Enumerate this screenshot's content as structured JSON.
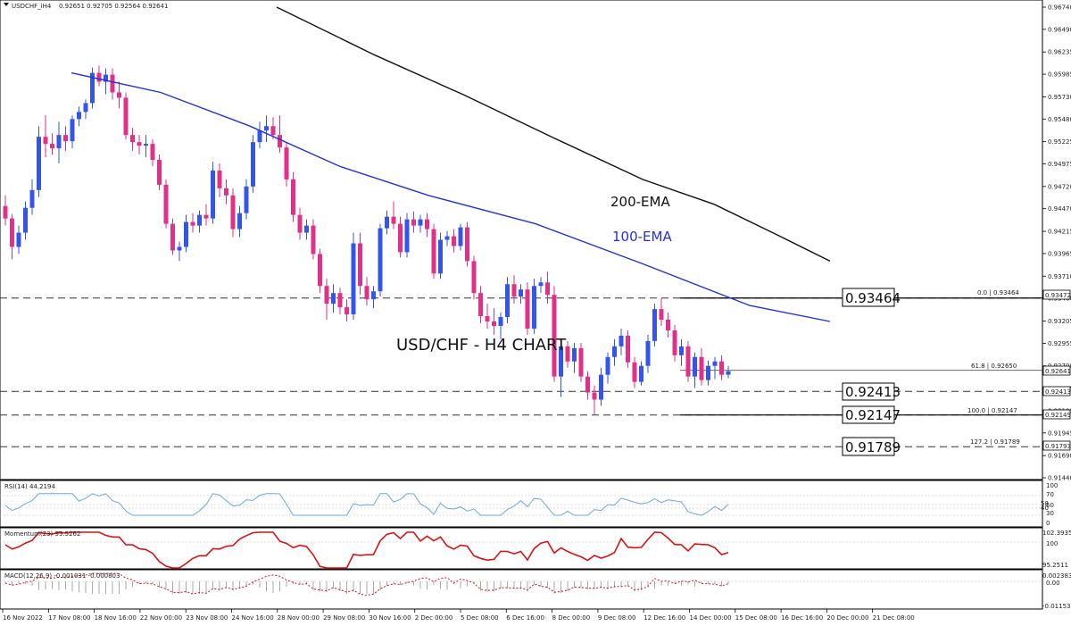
{
  "header": {
    "symbol_label": "USDCHF_iH4",
    "ohlc": "0.92651 0.92705 0.92564 0.92641"
  },
  "chart_data": {
    "type": "candlestick",
    "title": "USD/CHF - H4 CHART",
    "price_range": [
      0.9144,
      0.9674
    ],
    "y_ticks": [
      "0.96740",
      "0.96490",
      "0.96235",
      "0.95985",
      "0.95730",
      "0.95480",
      "0.95225",
      "0.94975",
      "0.94720",
      "0.94470",
      "0.94215",
      "0.93965",
      "0.93710",
      "0.93460",
      "0.93205",
      "0.92955",
      "0.92700",
      "0.92445",
      "0.92195",
      "0.91945",
      "0.91690",
      "0.91440"
    ],
    "x_ticks": [
      "16 Nov 2022",
      "17 Nov 08:00",
      "18 Nov 16:00",
      "22 Nov 00:00",
      "23 Nov 08:00",
      "24 Nov 16:00",
      "28 Nov 00:00",
      "29 Nov 08:00",
      "30 Nov 16:00",
      "2 Dec 00:00",
      "5 Dec 08:00",
      "6 Dec 16:00",
      "8 Dec 00:00",
      "9 Dec 08:00",
      "12 Dec 16:00",
      "14 Dec 00:00",
      "15 Dec 08:00",
      "16 Dec 16:00",
      "20 Dec 00:00",
      "21 Dec 08:00"
    ],
    "current_price": "0.92641",
    "ema_labels": {
      "ema200": "200-EMA",
      "ema100": "100-EMA"
    },
    "key_levels": [
      {
        "label": "0.93464",
        "value": 0.93464,
        "scale_box": "0.93472"
      },
      {
        "label": "0.92413",
        "value": 0.92413,
        "scale_box": "0.92413"
      },
      {
        "label": "0.92147",
        "value": 0.92147,
        "scale_box": "0.92149"
      },
      {
        "label": "0.91789",
        "value": 0.91789,
        "scale_box": "0.91793"
      }
    ],
    "fib_levels": [
      {
        "label": "0.0 | 0.93464",
        "value": 0.93464
      },
      {
        "label": "61.8 | 0.92650",
        "value": 0.9265
      },
      {
        "label": "100.0 | 0.92147",
        "value": 0.92147
      },
      {
        "label": "127.2 | 0.91789",
        "value": 0.91789
      }
    ],
    "candles": [
      [
        0.945,
        0.9462,
        0.9428,
        0.9436
      ],
      [
        0.9436,
        0.9441,
        0.939,
        0.9404
      ],
      [
        0.9404,
        0.9428,
        0.9396,
        0.942
      ],
      [
        0.942,
        0.9455,
        0.9412,
        0.9448
      ],
      [
        0.9448,
        0.948,
        0.944,
        0.9468
      ],
      [
        0.9468,
        0.954,
        0.946,
        0.9528
      ],
      [
        0.9528,
        0.9552,
        0.9505,
        0.952
      ],
      [
        0.952,
        0.9532,
        0.9508,
        0.9515
      ],
      [
        0.9515,
        0.9545,
        0.9498,
        0.953
      ],
      [
        0.953,
        0.954,
        0.9512,
        0.9523
      ],
      [
        0.9523,
        0.9552,
        0.9515,
        0.9548
      ],
      [
        0.9548,
        0.9562,
        0.954,
        0.9556
      ],
      [
        0.9556,
        0.957,
        0.9548,
        0.9566
      ],
      [
        0.9566,
        0.9606,
        0.956,
        0.96
      ],
      [
        0.96,
        0.9608,
        0.9585,
        0.959
      ],
      [
        0.959,
        0.9605,
        0.9576,
        0.9598
      ],
      [
        0.9598,
        0.9605,
        0.957,
        0.9578
      ],
      [
        0.9578,
        0.959,
        0.956,
        0.9572
      ],
      [
        0.9572,
        0.9578,
        0.9525,
        0.953
      ],
      [
        0.953,
        0.9538,
        0.9512,
        0.9522
      ],
      [
        0.9522,
        0.953,
        0.9508,
        0.9518
      ],
      [
        0.9518,
        0.953,
        0.9505,
        0.952
      ],
      [
        0.952,
        0.9525,
        0.9495,
        0.9502
      ],
      [
        0.9502,
        0.9508,
        0.9468,
        0.9474
      ],
      [
        0.9474,
        0.948,
        0.9425,
        0.943
      ],
      [
        0.943,
        0.9436,
        0.9395,
        0.94
      ],
      [
        0.94,
        0.941,
        0.9388,
        0.9404
      ],
      [
        0.9404,
        0.944,
        0.9398,
        0.9432
      ],
      [
        0.9432,
        0.9442,
        0.942,
        0.9428
      ],
      [
        0.9428,
        0.9445,
        0.942,
        0.944
      ],
      [
        0.944,
        0.9452,
        0.9428,
        0.9436
      ],
      [
        0.9436,
        0.95,
        0.943,
        0.949
      ],
      [
        0.949,
        0.9498,
        0.946,
        0.947
      ],
      [
        0.947,
        0.948,
        0.9452,
        0.9462
      ],
      [
        0.9462,
        0.947,
        0.9415,
        0.9424
      ],
      [
        0.9424,
        0.945,
        0.9415,
        0.9442
      ],
      [
        0.9442,
        0.948,
        0.9435,
        0.9472
      ],
      [
        0.9472,
        0.953,
        0.9465,
        0.9522
      ],
      [
        0.9522,
        0.9545,
        0.9515,
        0.9535
      ],
      [
        0.9535,
        0.9552,
        0.9522,
        0.954
      ],
      [
        0.954,
        0.955,
        0.9525,
        0.953
      ],
      [
        0.953,
        0.9552,
        0.951,
        0.9516
      ],
      [
        0.9516,
        0.9522,
        0.9472,
        0.948
      ],
      [
        0.948,
        0.9488,
        0.9432,
        0.944
      ],
      [
        0.944,
        0.9448,
        0.9412,
        0.942
      ],
      [
        0.942,
        0.9435,
        0.9412,
        0.9428
      ],
      [
        0.9428,
        0.9435,
        0.939,
        0.9396
      ],
      [
        0.9396,
        0.9402,
        0.9352,
        0.936
      ],
      [
        0.936,
        0.9368,
        0.9322,
        0.934
      ],
      [
        0.934,
        0.9362,
        0.933,
        0.9352
      ],
      [
        0.9352,
        0.9358,
        0.9328,
        0.9336
      ],
      [
        0.9336,
        0.9345,
        0.932,
        0.9328
      ],
      [
        0.9328,
        0.942,
        0.9322,
        0.9408
      ],
      [
        0.9408,
        0.942,
        0.935,
        0.936
      ],
      [
        0.936,
        0.937,
        0.9338,
        0.9345
      ],
      [
        0.9345,
        0.936,
        0.9335,
        0.9354
      ],
      [
        0.9354,
        0.943,
        0.9348,
        0.9425
      ],
      [
        0.9425,
        0.9445,
        0.9418,
        0.9438
      ],
      [
        0.9438,
        0.9455,
        0.9424,
        0.943
      ],
      [
        0.943,
        0.9438,
        0.9392,
        0.9398
      ],
      [
        0.9398,
        0.9442,
        0.9392,
        0.9435
      ],
      [
        0.9435,
        0.9444,
        0.942,
        0.9428
      ],
      [
        0.9428,
        0.944,
        0.942,
        0.9435
      ],
      [
        0.9435,
        0.9442,
        0.9415,
        0.9424
      ],
      [
        0.9424,
        0.943,
        0.9368,
        0.9374
      ],
      [
        0.9374,
        0.942,
        0.9368,
        0.9412
      ],
      [
        0.9412,
        0.9422,
        0.9405,
        0.9416
      ],
      [
        0.9416,
        0.9424,
        0.9398,
        0.9405
      ],
      [
        0.9405,
        0.943,
        0.94,
        0.9426
      ],
      [
        0.9426,
        0.9432,
        0.9382,
        0.9388
      ],
      [
        0.9388,
        0.9394,
        0.9345,
        0.9352
      ],
      [
        0.9352,
        0.936,
        0.9318,
        0.9326
      ],
      [
        0.9326,
        0.934,
        0.9312,
        0.932
      ],
      [
        0.932,
        0.9335,
        0.9305,
        0.9315
      ],
      [
        0.9315,
        0.933,
        0.93,
        0.9325
      ],
      [
        0.9325,
        0.937,
        0.9318,
        0.9362
      ],
      [
        0.9362,
        0.9372,
        0.934,
        0.9348
      ],
      [
        0.9348,
        0.9362,
        0.934,
        0.9356
      ],
      [
        0.9356,
        0.9364,
        0.9305,
        0.9312
      ],
      [
        0.9312,
        0.9368,
        0.9306,
        0.936
      ],
      [
        0.936,
        0.937,
        0.9352,
        0.9364
      ],
      [
        0.9364,
        0.9376,
        0.934,
        0.935
      ],
      [
        0.935,
        0.936,
        0.9252,
        0.9258
      ],
      [
        0.9258,
        0.93,
        0.9235,
        0.9292
      ],
      [
        0.9292,
        0.9298,
        0.9268,
        0.9275
      ],
      [
        0.9275,
        0.9296,
        0.9262,
        0.929
      ],
      [
        0.929,
        0.9296,
        0.9252,
        0.9258
      ],
      [
        0.9258,
        0.9264,
        0.9232,
        0.924
      ],
      [
        0.924,
        0.9248,
        0.9215,
        0.9232
      ],
      [
        0.9232,
        0.9268,
        0.9225,
        0.926
      ],
      [
        0.926,
        0.9285,
        0.925,
        0.928
      ],
      [
        0.928,
        0.93,
        0.927,
        0.9292
      ],
      [
        0.9292,
        0.9312,
        0.9282,
        0.9304
      ],
      [
        0.9304,
        0.931,
        0.9268,
        0.9274
      ],
      [
        0.9274,
        0.928,
        0.9245,
        0.9252
      ],
      [
        0.9252,
        0.9275,
        0.9248,
        0.927
      ],
      [
        0.927,
        0.9305,
        0.9262,
        0.9298
      ],
      [
        0.9298,
        0.934,
        0.9292,
        0.9334
      ],
      [
        0.9334,
        0.9346,
        0.9315,
        0.9322
      ],
      [
        0.9322,
        0.933,
        0.9302,
        0.931
      ],
      [
        0.931,
        0.9316,
        0.9275,
        0.9282
      ],
      [
        0.9282,
        0.93,
        0.927,
        0.9292
      ],
      [
        0.9292,
        0.9298,
        0.9252,
        0.9258
      ],
      [
        0.9258,
        0.9285,
        0.9245,
        0.928
      ],
      [
        0.928,
        0.929,
        0.9248,
        0.9254
      ],
      [
        0.9254,
        0.9276,
        0.9248,
        0.927
      ],
      [
        0.927,
        0.928,
        0.9255,
        0.9275
      ],
      [
        0.9275,
        0.9282,
        0.9254,
        0.926
      ],
      [
        0.926,
        0.927,
        0.9256,
        0.9264
      ]
    ],
    "ema100": [
      [
        0.969,
        0.96
      ],
      [
        0.963,
        0.9578
      ],
      [
        0.957,
        0.954
      ],
      [
        0.952,
        0.9495
      ],
      [
        0.95,
        0.9462
      ],
      [
        0.944,
        0.943
      ],
      [
        0.938,
        0.9385
      ],
      [
        0.933,
        0.9338
      ],
      [
        0.9325,
        0.932
      ]
    ],
    "ema200": [
      [
        0.98,
        0.9674
      ],
      [
        0.972,
        0.962
      ],
      [
        0.965,
        0.9575
      ],
      [
        0.96,
        0.9527
      ],
      [
        0.955,
        0.948
      ],
      [
        0.95,
        0.9452
      ],
      [
        0.944,
        0.9418
      ],
      [
        0.9395,
        0.9388
      ]
    ],
    "indicators": {
      "rsi": {
        "label": "RSI(14) 44.2194",
        "levels": [
          "100",
          "70",
          "50",
          "30",
          "0"
        ],
        "level_labels": [
          "58",
          "40"
        ]
      },
      "momentum": {
        "label": "Momentum(23) 99.5262",
        "scale": [
          "102.3935",
          "100",
          "95.2511"
        ]
      },
      "macd": {
        "label": "MACD(12,26,9) -0.001031 -0.000803",
        "scale": [
          "0.002383",
          "0.00",
          "-0.011534"
        ]
      }
    },
    "colors": {
      "bull": "#3355ee",
      "bear": "#e0308a",
      "ema100": "#2233dd",
      "ema200": "#111111",
      "rsi": "#6fa8dc",
      "momentum": "#dd1111",
      "macd_signal": "#dd1111",
      "macd_hist": "#aaaaaa"
    }
  }
}
